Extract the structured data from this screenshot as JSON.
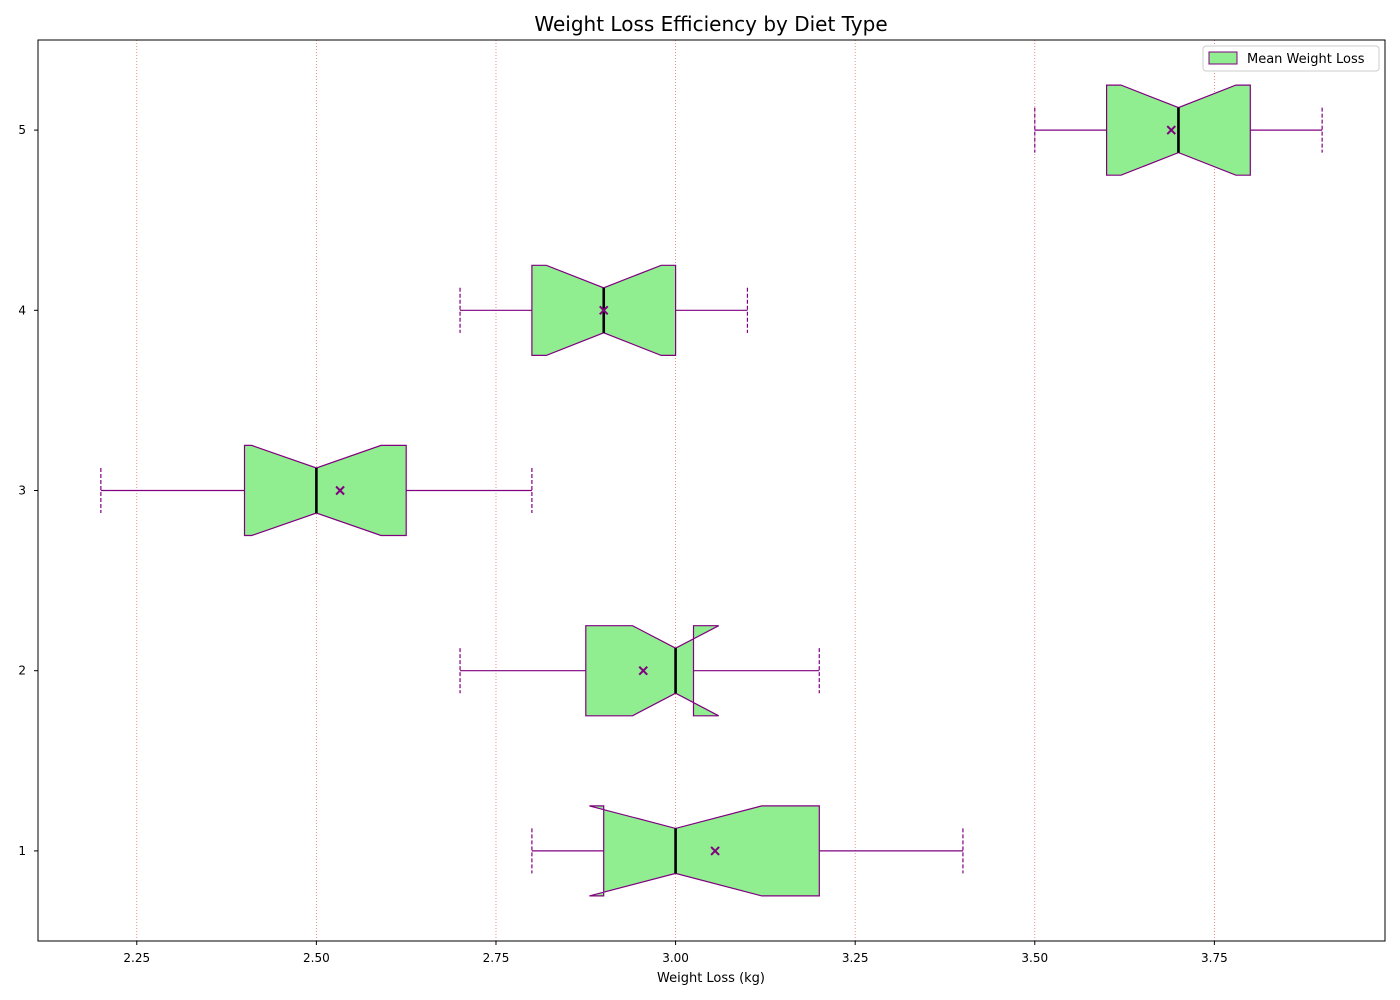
{
  "chart_data": {
    "type": "boxplot",
    "orientation": "horizontal",
    "notched": true,
    "title": "Weight Loss Efficiency by Diet Type",
    "xlabel": "Weight Loss (kg)",
    "ylabel": "",
    "xlim": [
      2.1125,
      3.9875
    ],
    "ylim": [
      0.5,
      5.5
    ],
    "xticks": [
      2.25,
      2.5,
      2.75,
      3.0,
      3.25,
      3.5,
      3.75
    ],
    "xtick_labels": [
      "2.25",
      "2.50",
      "2.75",
      "3.00",
      "3.25",
      "3.50",
      "3.75"
    ],
    "yticks": [
      1,
      2,
      3,
      4,
      5
    ],
    "ytick_labels": [
      "1",
      "2",
      "3",
      "4",
      "5"
    ],
    "grid": "x-axis dotted red",
    "legend": {
      "placement": "top-right",
      "entries": [
        "Mean Weight Loss"
      ]
    },
    "colors": {
      "box_fill": "#90ee90",
      "box_edge": "#800080",
      "median": "#000000",
      "grid": "#e8706a"
    },
    "boxes": [
      {
        "position": 1,
        "whisker_low": 2.8,
        "q1": 2.9,
        "median": 3.0,
        "q3": 3.2,
        "whisker_high": 3.4,
        "notch_low": 2.88,
        "notch_high": 3.12,
        "mean": 3.055
      },
      {
        "position": 2,
        "whisker_low": 2.7,
        "q1": 2.875,
        "median": 3.0,
        "q3": 3.025,
        "whisker_high": 3.2,
        "notch_low": 2.94,
        "notch_high": 3.06,
        "mean": 2.955
      },
      {
        "position": 3,
        "whisker_low": 2.2,
        "q1": 2.4,
        "median": 2.5,
        "q3": 2.625,
        "whisker_high": 2.8,
        "notch_low": 2.41,
        "notch_high": 2.59,
        "mean": 2.533
      },
      {
        "position": 4,
        "whisker_low": 2.7,
        "q1": 2.8,
        "median": 2.9,
        "q3": 3.0,
        "whisker_high": 3.1,
        "notch_low": 2.82,
        "notch_high": 2.98,
        "mean": 2.9
      },
      {
        "position": 5,
        "whisker_low": 3.5,
        "q1": 3.6,
        "median": 3.7,
        "q3": 3.8,
        "whisker_high": 3.9,
        "notch_low": 3.62,
        "notch_high": 3.78,
        "mean": 3.69
      }
    ]
  }
}
